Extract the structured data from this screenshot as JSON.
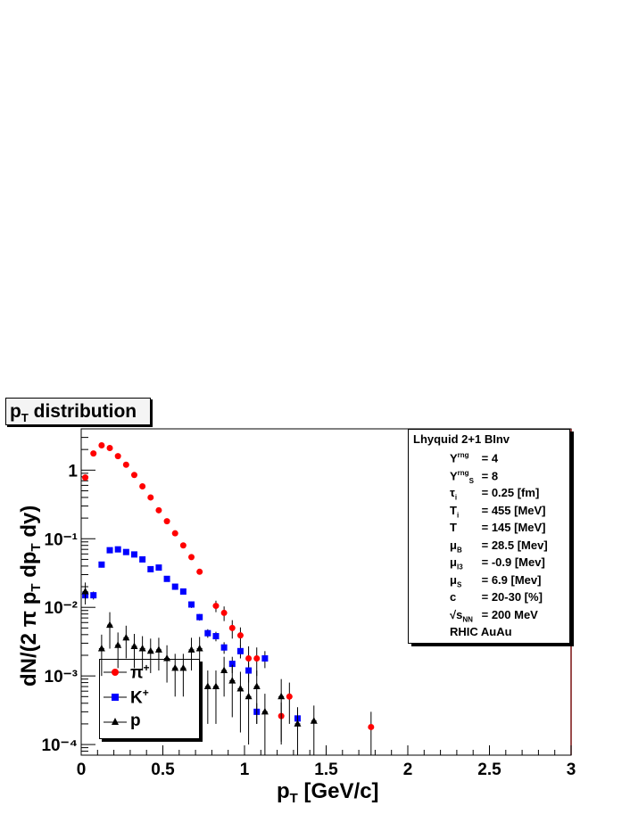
{
  "title": "p_T distribution",
  "title_parts": {
    "main": "p",
    "sub": "T",
    "rest": " distribution"
  },
  "info": {
    "heading": "Lhyquid 2+1 BInv",
    "rows": [
      {
        "sym": "Y",
        "sup": "rng",
        "sub": "",
        "value": "= 4"
      },
      {
        "sym": "Y",
        "sup": "rng",
        "sub": "S",
        "value": "= 8"
      },
      {
        "sym": "τ",
        "sup": "",
        "sub": "i",
        "value": "= 0.25 [fm]"
      },
      {
        "sym": "T",
        "sup": "",
        "sub": "i",
        "value": "= 455 [MeV]"
      },
      {
        "sym": "T",
        "sup": "",
        "sub": "",
        "value": "= 145 [MeV]"
      },
      {
        "sym": "μ",
        "sup": "",
        "sub": "B",
        "value": "= 28.5 [Mev]"
      },
      {
        "sym": "μ",
        "sup": "",
        "sub": "I3",
        "value": "= -0.9 [Mev]"
      },
      {
        "sym": "μ",
        "sup": "",
        "sub": "S",
        "value": "= 6.9 [Mev]"
      },
      {
        "sym": "c",
        "sup": "",
        "sub": "",
        "value": "= 20-30 [%]"
      },
      {
        "sym": "√s",
        "sup": "",
        "sub": "NN",
        "value": "= 200 MeV"
      },
      {
        "sym": "RHIC AuAu",
        "sup": "",
        "sub": "",
        "value": ""
      }
    ]
  },
  "legend": [
    {
      "label": "π",
      "sup": "+",
      "color": "#ff0000",
      "marker": "circle"
    },
    {
      "label": "K",
      "sup": "+",
      "color": "#0000ff",
      "marker": "square"
    },
    {
      "label": "p",
      "sup": "",
      "color": "#000000",
      "marker": "triangle"
    }
  ],
  "chart_data": {
    "type": "scatter",
    "title": "p_T distribution",
    "xlabel": "p_T [GeV/c]",
    "ylabel": "dN/(2 π p_T dp_T dy)",
    "xlim": [
      0,
      3
    ],
    "ylim": [
      7e-05,
      4
    ],
    "yscale": "log",
    "grid": false,
    "legend_position": "bottom-left",
    "x_ticks": [
      "0",
      "0.5",
      "1",
      "1.5",
      "2",
      "2.5",
      "3"
    ],
    "y_ticks": [
      "10⁻⁴",
      "10⁻³",
      "10⁻²",
      "10⁻¹",
      "1"
    ],
    "series": [
      {
        "name": "π+",
        "color": "#ff0000",
        "marker": "circle",
        "x": [
          0.025,
          0.075,
          0.125,
          0.175,
          0.225,
          0.275,
          0.325,
          0.375,
          0.425,
          0.475,
          0.525,
          0.575,
          0.625,
          0.675,
          0.725,
          0.825,
          0.875,
          0.925,
          0.975,
          1.025,
          1.075,
          1.225,
          1.275,
          1.775
        ],
        "y": [
          0.78,
          1.75,
          2.3,
          2.1,
          1.6,
          1.2,
          0.85,
          0.58,
          0.4,
          0.26,
          0.18,
          0.12,
          0.08,
          0.054,
          0.033,
          0.0105,
          0.0083,
          0.005,
          0.0039,
          0.0018,
          0.0018,
          0.00026,
          0.0005,
          0.00018
        ],
        "err": [
          0.06,
          0.08,
          0.08,
          0.07,
          0.05,
          0.04,
          0.03,
          0.02,
          0.01,
          0.01,
          0.005,
          0.004,
          0.003,
          0.002,
          0.002,
          0.002,
          0.002,
          0.0015,
          0.0012,
          0.0009,
          0.0008,
          0.00015,
          0.0003,
          0.00012
        ]
      },
      {
        "name": "K+",
        "color": "#0000ff",
        "marker": "square",
        "x": [
          0.025,
          0.075,
          0.125,
          0.175,
          0.225,
          0.275,
          0.325,
          0.375,
          0.425,
          0.475,
          0.525,
          0.575,
          0.625,
          0.675,
          0.725,
          0.775,
          0.825,
          0.875,
          0.925,
          0.975,
          1.025,
          1.075,
          1.125,
          1.325
        ],
        "y": [
          0.015,
          0.015,
          0.042,
          0.068,
          0.07,
          0.064,
          0.059,
          0.05,
          0.036,
          0.038,
          0.026,
          0.02,
          0.017,
          0.011,
          0.0072,
          0.0042,
          0.0038,
          0.0026,
          0.0015,
          0.0023,
          0.0012,
          0.0003,
          0.0018,
          0.00024
        ],
        "err": [
          0.002,
          0.002,
          0.004,
          0.006,
          0.006,
          0.005,
          0.005,
          0.004,
          0.003,
          0.003,
          0.002,
          0.002,
          0.0015,
          0.0012,
          0.0008,
          0.0006,
          0.0006,
          0.0005,
          0.0004,
          0.0005,
          0.0004,
          0.0001,
          0.0005,
          8e-05
        ]
      },
      {
        "name": "p",
        "color": "#000000",
        "marker": "triangle",
        "x": [
          0.025,
          0.125,
          0.175,
          0.225,
          0.275,
          0.325,
          0.375,
          0.425,
          0.475,
          0.525,
          0.575,
          0.625,
          0.675,
          0.725,
          0.775,
          0.825,
          0.875,
          0.925,
          0.975,
          1.025,
          1.075,
          1.125,
          1.225,
          1.325,
          1.425
        ],
        "y": [
          0.017,
          0.0025,
          0.0055,
          0.0028,
          0.0036,
          0.0027,
          0.0025,
          0.0023,
          0.0024,
          0.0018,
          0.0013,
          0.0013,
          0.0024,
          0.0025,
          0.0007,
          0.0007,
          0.0012,
          0.00085,
          0.00065,
          0.0005,
          0.0007,
          0.0003,
          0.0005,
          0.0002,
          0.00022
        ],
        "err": [
          0.006,
          0.0015,
          0.003,
          0.0015,
          0.0018,
          0.0014,
          0.0013,
          0.0012,
          0.0012,
          0.001,
          0.0008,
          0.0008,
          0.0012,
          0.0012,
          0.0005,
          0.0005,
          0.0007,
          0.0006,
          0.0005,
          0.0004,
          0.0005,
          0.00025,
          0.0004,
          0.00015,
          0.00015
        ]
      }
    ]
  }
}
